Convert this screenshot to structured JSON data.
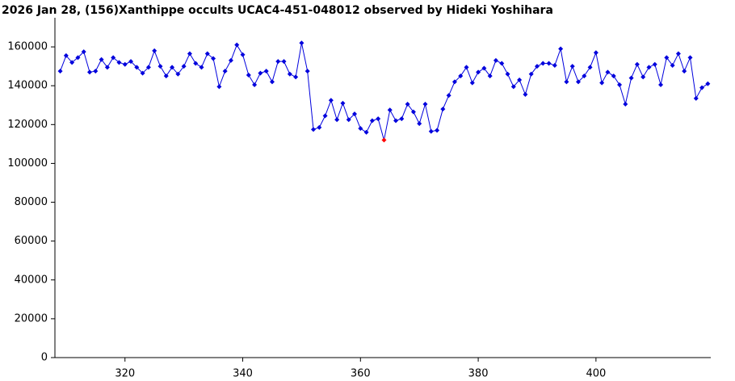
{
  "chart_data": {
    "type": "line",
    "title": "2026 Jan 28, (156)Xanthippe occults UCAC4-451-048012 observed by Hideki Yoshihara",
    "x": [
      309,
      310,
      311,
      312,
      313,
      314,
      315,
      316,
      317,
      318,
      319,
      320,
      321,
      322,
      323,
      324,
      325,
      326,
      327,
      328,
      329,
      330,
      331,
      332,
      333,
      334,
      335,
      336,
      337,
      338,
      339,
      340,
      341,
      342,
      343,
      344,
      345,
      346,
      347,
      348,
      349,
      350,
      351,
      352,
      353,
      354,
      355,
      356,
      357,
      358,
      359,
      360,
      361,
      362,
      363,
      364,
      365,
      366,
      367,
      368,
      369,
      370,
      371,
      372,
      373,
      374,
      375,
      376,
      377,
      378,
      379,
      380,
      381,
      382,
      383,
      384,
      385,
      386,
      387,
      388,
      389,
      390,
      391,
      392,
      393,
      394,
      395,
      396,
      397,
      398,
      399,
      400,
      401,
      402,
      403,
      404,
      405,
      406,
      407,
      408,
      409,
      410,
      411,
      412,
      413,
      414,
      415,
      416,
      417,
      418,
      419
    ],
    "series": [
      {
        "color": "#0000dd",
        "values": [
          147500,
          155500,
          152000,
          154500,
          157500,
          147000,
          147500,
          153500,
          149500,
          154500,
          152000,
          151000,
          152500,
          149500,
          146500,
          149500,
          158000,
          150000,
          145000,
          149500,
          146000,
          150000,
          156500,
          151500,
          149500,
          156500,
          154000,
          139500,
          147500,
          153000,
          161000,
          156000,
          145500,
          140500,
          146500,
          147500,
          142000,
          152500,
          152500,
          146000,
          144500,
          162000,
          147500,
          117500,
          118500,
          124500,
          132500,
          122500,
          131000,
          122500,
          125500,
          118000,
          116000,
          122000,
          123000,
          112000,
          127500,
          122000,
          123000,
          130500,
          126500,
          120500,
          130500,
          116500,
          117000,
          128000,
          135000,
          142000,
          145000,
          149500,
          141500,
          147000,
          149000,
          145000,
          153000,
          151500,
          146000,
          139500,
          143000,
          135500,
          146000,
          150000,
          151500,
          151500,
          150500,
          159000,
          142000,
          150000,
          142000,
          145000,
          149500,
          157000,
          141500,
          147000,
          145000,
          140500,
          130500,
          144000,
          151000,
          144500,
          149500,
          151000,
          140500,
          154500,
          150500,
          156500,
          147500,
          154500,
          133500,
          139000,
          141000
        ]
      }
    ],
    "highlight_index": 55,
    "highlight_color": "#ff0000",
    "xlim": [
      308.1,
      419.5
    ],
    "xticks": [
      320,
      340,
      360,
      380,
      400
    ],
    "ylim": [
      0,
      175000
    ],
    "yticks": [
      0,
      20000,
      40000,
      60000,
      80000,
      100000,
      120000,
      140000,
      160000
    ]
  }
}
